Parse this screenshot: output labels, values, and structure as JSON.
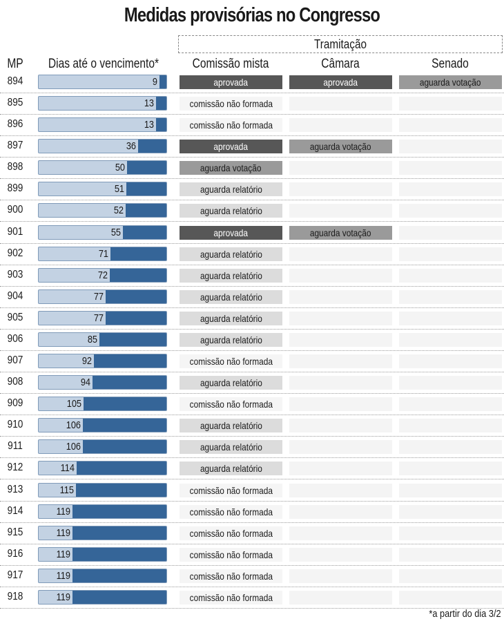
{
  "title": "Medidas provisórias no Congresso",
  "headers": {
    "mp": "MP",
    "dias": "Dias até o vencimento*",
    "tramitacao": "Tramitação",
    "comissao": "Comissão mista",
    "camara": "Câmara",
    "senado": "Senado"
  },
  "footnote": "*a partir do dia 3/2",
  "colors": {
    "bar_fill": "#356598",
    "bar_bg": "#c3d2e3",
    "aprovada": "#575757",
    "aguarda_votacao": "#9a9a9a",
    "aguarda_relatorio": "#dcdcdc"
  },
  "chart_data": {
    "type": "table",
    "title": "Medidas provisórias no Congresso",
    "columns": [
      "MP",
      "Dias até o vencimento*",
      "Comissão mista",
      "Câmara",
      "Senado"
    ],
    "bar_scale_max_days": 162,
    "rows": [
      {
        "mp": "894",
        "dias": 9,
        "comissao": "aprovada",
        "camara": "aprovada",
        "senado": "aguarda votação"
      },
      {
        "mp": "895",
        "dias": 13,
        "comissao": "comissão não formada",
        "camara": "",
        "senado": ""
      },
      {
        "mp": "896",
        "dias": 13,
        "comissao": "comissão não formada",
        "camara": "",
        "senado": ""
      },
      {
        "mp": "897",
        "dias": 36,
        "comissao": "aprovada",
        "camara": "aguarda votação",
        "senado": ""
      },
      {
        "mp": "898",
        "dias": 50,
        "comissao": "aguarda votação",
        "camara": "",
        "senado": ""
      },
      {
        "mp": "899",
        "dias": 51,
        "comissao": "aguarda relatório",
        "camara": "",
        "senado": ""
      },
      {
        "mp": "900",
        "dias": 52,
        "comissao": "aguarda relatório",
        "camara": "",
        "senado": ""
      },
      {
        "mp": "901",
        "dias": 55,
        "comissao": "aprovada",
        "camara": "aguarda votação",
        "senado": ""
      },
      {
        "mp": "902",
        "dias": 71,
        "comissao": "aguarda relatório",
        "camara": "",
        "senado": ""
      },
      {
        "mp": "903",
        "dias": 72,
        "comissao": "aguarda relatório",
        "camara": "",
        "senado": ""
      },
      {
        "mp": "904",
        "dias": 77,
        "comissao": "aguarda relatório",
        "camara": "",
        "senado": ""
      },
      {
        "mp": "905",
        "dias": 77,
        "comissao": "aguarda relatório",
        "camara": "",
        "senado": ""
      },
      {
        "mp": "906",
        "dias": 85,
        "comissao": "aguarda relatório",
        "camara": "",
        "senado": ""
      },
      {
        "mp": "907",
        "dias": 92,
        "comissao": "comissão não formada",
        "camara": "",
        "senado": ""
      },
      {
        "mp": "908",
        "dias": 94,
        "comissao": "aguarda relatório",
        "camara": "",
        "senado": ""
      },
      {
        "mp": "909",
        "dias": 105,
        "comissao": "comissão não formada",
        "camara": "",
        "senado": ""
      },
      {
        "mp": "910",
        "dias": 106,
        "comissao": "aguarda relatório",
        "camara": "",
        "senado": ""
      },
      {
        "mp": "911",
        "dias": 106,
        "comissao": "aguarda relatório",
        "camara": "",
        "senado": ""
      },
      {
        "mp": "912",
        "dias": 114,
        "comissao": "aguarda relatório",
        "camara": "",
        "senado": ""
      },
      {
        "mp": "913",
        "dias": 115,
        "comissao": "comissão não formada",
        "camara": "",
        "senado": ""
      },
      {
        "mp": "914",
        "dias": 119,
        "comissao": "comissão não formada",
        "camara": "",
        "senado": ""
      },
      {
        "mp": "915",
        "dias": 119,
        "comissao": "comissão não formada",
        "camara": "",
        "senado": ""
      },
      {
        "mp": "916",
        "dias": 119,
        "comissao": "comissão não formada",
        "camara": "",
        "senado": ""
      },
      {
        "mp": "917",
        "dias": 119,
        "comissao": "comissão não formada",
        "camara": "",
        "senado": ""
      },
      {
        "mp": "918",
        "dias": 119,
        "comissao": "comissão não formada",
        "camara": "",
        "senado": ""
      }
    ]
  }
}
